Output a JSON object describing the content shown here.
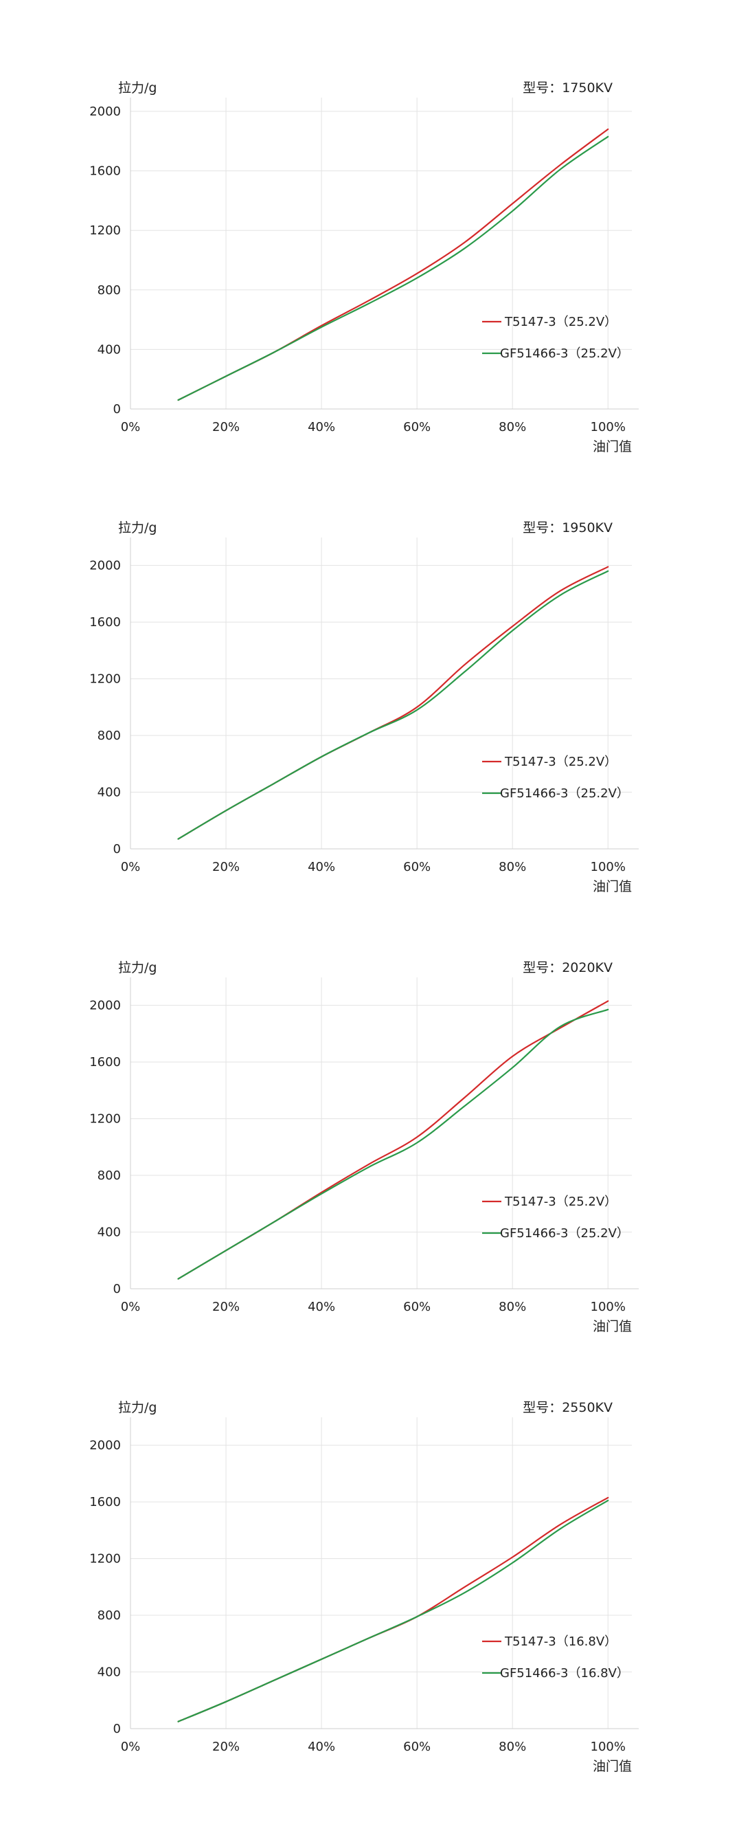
{
  "chart_data": [
    {
      "type": "line",
      "model_label": "型号：1750KV",
      "ylabel": "拉力/g",
      "xlabel": "油门值",
      "x": [
        10,
        20,
        30,
        40,
        50,
        60,
        70,
        80,
        90,
        100
      ],
      "x_ticks": [
        "0%",
        "20%",
        "40%",
        "60%",
        "80%",
        "100%"
      ],
      "y_ticks": [
        "0",
        "400",
        "800",
        "1200",
        "1600",
        "2000"
      ],
      "xlim": [
        0,
        105
      ],
      "ylim": [
        0,
        2000
      ],
      "grid": true,
      "legend_position": "right",
      "series": [
        {
          "name": "T5147-3（25.2V）",
          "color": "#d42a2a",
          "values": [
            60,
            220,
            380,
            560,
            730,
            910,
            1120,
            1380,
            1640,
            1880
          ]
        },
        {
          "name": "GF51466-3（25.2V）",
          "color": "#2a9a4a",
          "values": [
            60,
            220,
            380,
            550,
            710,
            880,
            1080,
            1330,
            1610,
            1830
          ]
        }
      ]
    },
    {
      "type": "line",
      "model_label": "型号：1950KV",
      "ylabel": "拉力/g",
      "xlabel": "油门值",
      "x": [
        10,
        20,
        30,
        40,
        50,
        60,
        70,
        80,
        90,
        100
      ],
      "x_ticks": [
        "0%",
        "20%",
        "40%",
        "60%",
        "80%",
        "100%"
      ],
      "y_ticks": [
        "0",
        "400",
        "800",
        "1200",
        "1600",
        "2000"
      ],
      "xlim": [
        0,
        105
      ],
      "ylim": [
        0,
        2100
      ],
      "grid": true,
      "legend_position": "right",
      "series": [
        {
          "name": "T5147-3（25.2V）",
          "color": "#d42a2a",
          "values": [
            70,
            270,
            460,
            650,
            820,
            1000,
            1300,
            1570,
            1820,
            1990
          ]
        },
        {
          "name": "GF51466-3（25.2V）",
          "color": "#2a9a4a",
          "values": [
            70,
            270,
            460,
            650,
            820,
            980,
            1250,
            1540,
            1790,
            1960
          ]
        }
      ]
    },
    {
      "type": "line",
      "model_label": "型号：2020KV",
      "ylabel": "拉力/g",
      "xlabel": "油门值",
      "x": [
        10,
        20,
        30,
        40,
        50,
        60,
        70,
        80,
        90,
        100
      ],
      "x_ticks": [
        "0%",
        "20%",
        "40%",
        "60%",
        "80%",
        "100%"
      ],
      "y_ticks": [
        "0",
        "400",
        "800",
        "1200",
        "1600",
        "2000"
      ],
      "xlim": [
        0,
        105
      ],
      "ylim": [
        0,
        2100
      ],
      "grid": true,
      "legend_position": "right",
      "series": [
        {
          "name": "T5147-3（25.2V）",
          "color": "#d42a2a",
          "values": [
            70,
            270,
            470,
            680,
            880,
            1070,
            1350,
            1640,
            1840,
            2030
          ]
        },
        {
          "name": "GF51466-3（25.2V）",
          "color": "#2a9a4a",
          "values": [
            70,
            270,
            470,
            670,
            860,
            1030,
            1290,
            1560,
            1850,
            1970
          ]
        }
      ]
    },
    {
      "type": "line",
      "model_label": "型号：2550KV",
      "ylabel": "拉力/g",
      "xlabel": "油门值",
      "x": [
        10,
        20,
        30,
        40,
        50,
        60,
        70,
        80,
        90,
        100
      ],
      "x_ticks": [
        "0%",
        "20%",
        "40%",
        "60%",
        "80%",
        "100%"
      ],
      "y_ticks": [
        "0",
        "400",
        "800",
        "1200",
        "1600",
        "2000"
      ],
      "xlim": [
        0,
        105
      ],
      "ylim": [
        0,
        2100
      ],
      "grid": true,
      "legend_position": "right",
      "series": [
        {
          "name": "T5147-3（16.8V）",
          "color": "#d42a2a",
          "values": [
            50,
            190,
            340,
            490,
            640,
            790,
            1000,
            1210,
            1440,
            1630
          ]
        },
        {
          "name": "GF51466-3（16.8V）",
          "color": "#2a9a4a",
          "values": [
            50,
            190,
            340,
            490,
            640,
            790,
            960,
            1170,
            1410,
            1610
          ]
        }
      ]
    }
  ]
}
